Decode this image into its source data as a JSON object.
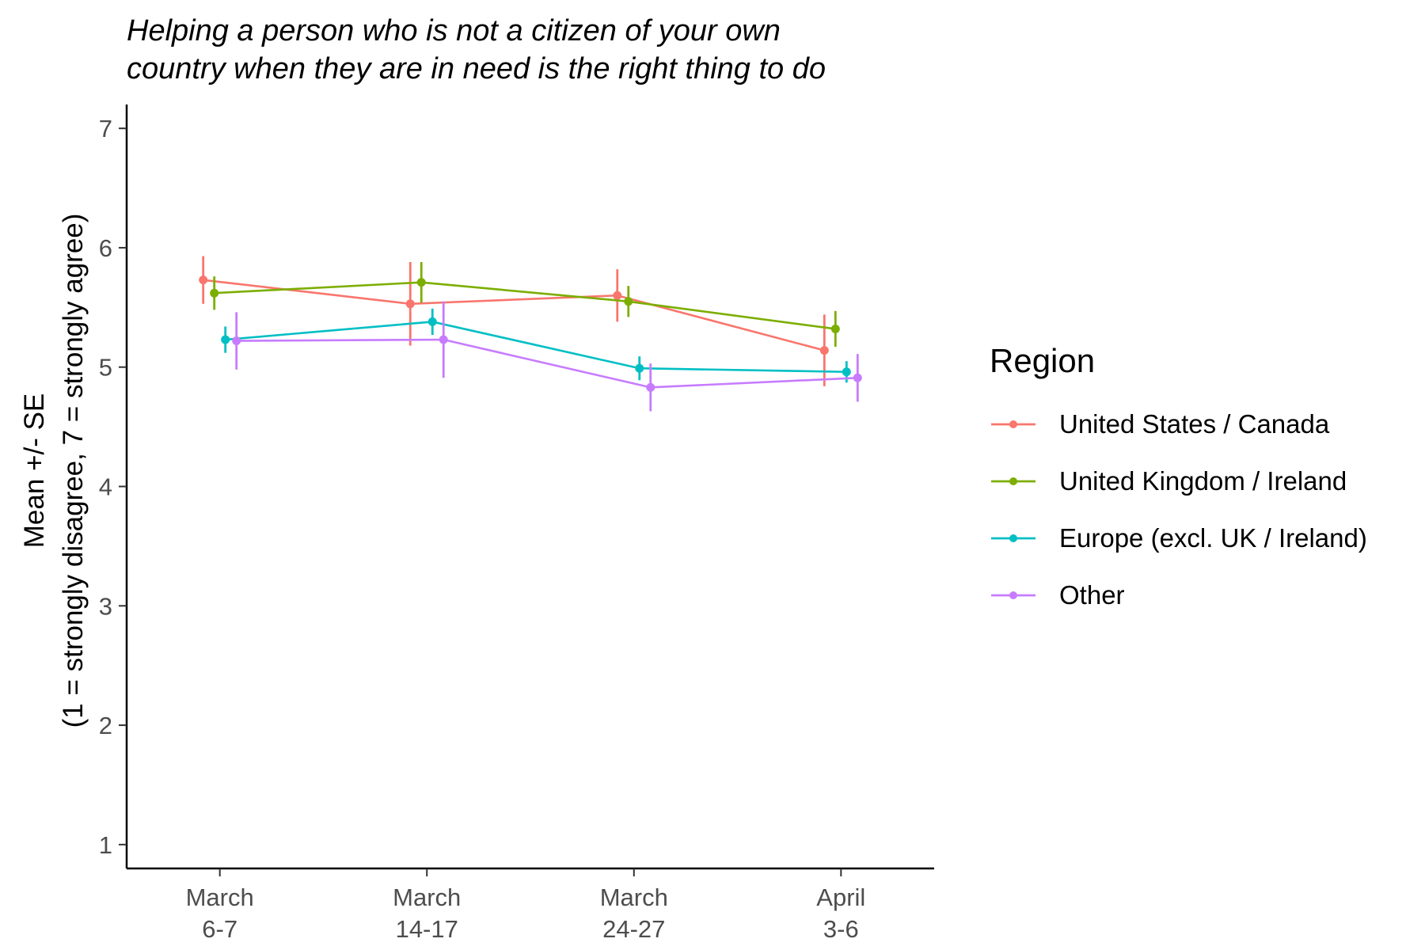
{
  "chart_data": {
    "type": "line",
    "title_lines": [
      "Helping a person who is not a citizen of your own",
      "country when they are in need is the right thing to do"
    ],
    "ylabel_lines": [
      "Mean +/- SE",
      "(1 = strongly disagree, 7 = strongly agree)"
    ],
    "xlabel": "",
    "categories": [
      {
        "line1": "March",
        "line2": "6-7"
      },
      {
        "line1": "March",
        "line2": "14-17"
      },
      {
        "line1": "March",
        "line2": "24-27"
      },
      {
        "line1": "April",
        "line2": "3-6"
      }
    ],
    "ylim": [
      0.8,
      7.2
    ],
    "yticks": [
      1,
      2,
      3,
      4,
      5,
      6,
      7
    ],
    "grid": false,
    "legend": {
      "title": "Region",
      "placement": "right"
    },
    "series": [
      {
        "name": "United States / Canada",
        "color": "#F8766D",
        "values": [
          5.73,
          5.53,
          5.6,
          5.14
        ],
        "se": [
          0.2,
          0.35,
          0.22,
          0.3
        ]
      },
      {
        "name": "United Kingdom / Ireland",
        "color": "#7CAE00",
        "values": [
          5.62,
          5.71,
          5.55,
          5.32
        ],
        "se": [
          0.14,
          0.17,
          0.13,
          0.15
        ]
      },
      {
        "name": "Europe (excl. UK / Ireland)",
        "color": "#00BFC4",
        "values": [
          5.23,
          5.38,
          4.99,
          4.96
        ],
        "se": [
          0.11,
          0.11,
          0.1,
          0.09
        ]
      },
      {
        "name": "Other",
        "color": "#C77CFF",
        "values": [
          5.22,
          5.23,
          4.83,
          4.91
        ],
        "se": [
          0.24,
          0.32,
          0.2,
          0.2
        ]
      }
    ]
  }
}
